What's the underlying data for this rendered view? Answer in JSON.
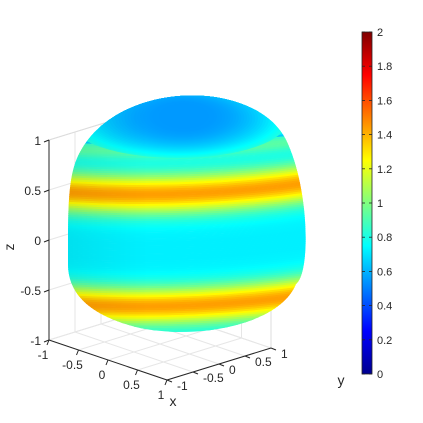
{
  "chart_data": {
    "type": "surface3d",
    "title": "",
    "xlabel": "x",
    "ylabel": "y",
    "zlabel": "z",
    "xlim": [
      -1,
      1
    ],
    "ylim": [
      -1,
      1
    ],
    "zlim": [
      -1,
      1
    ],
    "x_ticks": [
      "-1",
      "-0.5",
      "0",
      "0.5",
      "1"
    ],
    "y_ticks": [
      "-1",
      "-0.5",
      "0",
      "0.5",
      "1"
    ],
    "z_ticks": [
      "-1",
      "-0.5",
      "0",
      "0.5",
      "1"
    ],
    "grid": true,
    "box": true,
    "shape": "rounded superquadric solid (|x|^4 + |y|^4)^(1/4) bulging sides, flattened poles",
    "color_mapping": "bands along z: value ~0.7 at z=0, ~1.4 at z=±0.5, ~0.65 near z=±0.85 rim, ~0.55 at poles",
    "colormap": "jet",
    "colorbar": {
      "limits": [
        0,
        2
      ],
      "ticks": [
        "0",
        "0.2",
        "0.4",
        "0.6",
        "0.8",
        "1",
        "1.2",
        "1.4",
        "1.6",
        "1.8",
        "2"
      ],
      "location": "right"
    }
  }
}
